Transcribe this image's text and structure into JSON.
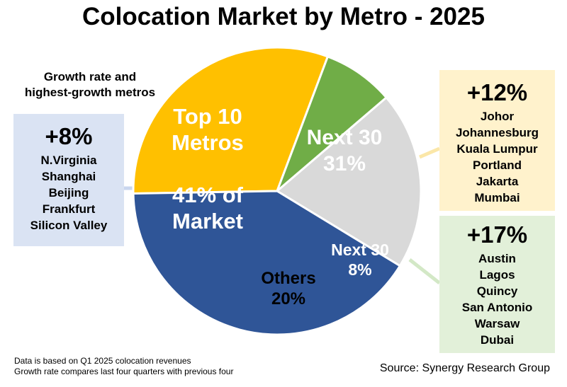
{
  "title": "Colocation Market by Metro - 2025",
  "subtitle_lines": [
    "Growth rate and",
    "highest-growth metros"
  ],
  "chart_data": {
    "type": "pie",
    "title": "Colocation Market by Metro - 2025",
    "slices": [
      {
        "label_lines": [
          "Top 10",
          "Metros",
          "",
          "41% of",
          "Market"
        ],
        "category": "Top 10 Metros",
        "value": 41,
        "color": "#2f5597",
        "text_color": "#ffffff"
      },
      {
        "label_lines": [
          "Next 30",
          "31%"
        ],
        "category": "Next 30",
        "value": 31,
        "color": "#ffc000",
        "text_color": "#ffffff"
      },
      {
        "label_lines": [
          "Next 30",
          "8%"
        ],
        "category": "Next 30",
        "value": 8,
        "color": "#70ad47",
        "text_color": "#ffffff"
      },
      {
        "label_lines": [
          "Others",
          "20%"
        ],
        "category": "Others",
        "value": 20,
        "color": "#d9d9d9",
        "text_color": "#000000"
      }
    ],
    "callouts": [
      {
        "growth": "+8%",
        "metros": [
          "N.Virginia",
          "Shanghai",
          "Beijing",
          "Frankfurt",
          "Silicon Valley"
        ]
      },
      {
        "growth": "+12%",
        "metros": [
          "Johor",
          "Johannesburg",
          "Kuala Lumpur",
          "Portland",
          "Jakarta",
          "Mumbai"
        ]
      },
      {
        "growth": "+17%",
        "metros": [
          "Austin",
          "Lagos",
          "Quincy",
          "San Antonio",
          "Warsaw",
          "Dubai"
        ]
      }
    ]
  },
  "notes": [
    "Data is based on Q1 2025 colocation revenues",
    "Growth rate compares last four quarters with previous four"
  ],
  "source": "Source: Synergy Research Group",
  "colors": {
    "leader_top10": "#c9d6ee",
    "leader_next30a": "#fbe7a8",
    "leader_next30b": "#d3e8c6"
  }
}
